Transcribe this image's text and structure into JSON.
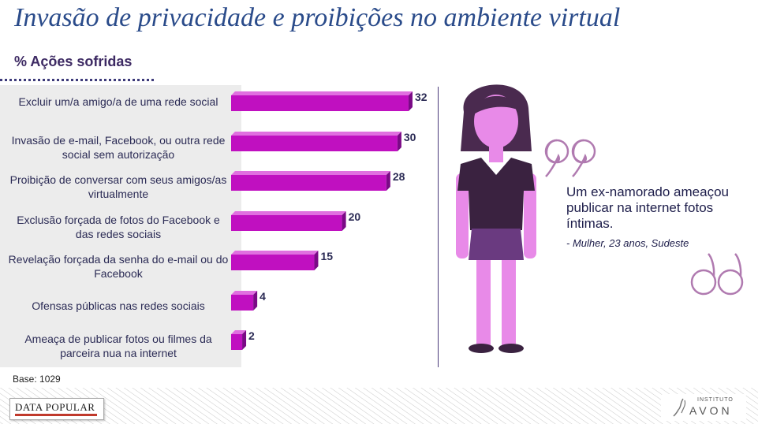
{
  "title": "Invasão de privacidade e proibições no ambiente virtual",
  "subtitle": "% Ações sofridas",
  "base_note": "Base: 1029",
  "quote": {
    "text": "Um ex-namorado ameaçou publicar na internet fotos íntimas.",
    "attribution": "- Mulher, 23 anos, Sudeste"
  },
  "brands": {
    "left": "DATA POPULAR",
    "right_small": "INSTITUTO",
    "right_big": "AVON"
  },
  "colors": {
    "bar": "#c010c0",
    "bar_dark": "#7a0a86",
    "label": "#2b2b55",
    "title": "#2a4b8a"
  },
  "chart_data": {
    "type": "bar",
    "orientation": "horizontal",
    "categories": [
      "Excluir um/a amigo/a de uma rede social",
      "Invasão de e-mail, Facebook, ou outra rede social sem autorização",
      "Proibição de conversar com seus amigos/as virtualmente",
      "Exclusão forçada de fotos do Facebook e das redes sociais",
      "Revelação forçada da senha do e-mail ou do Facebook",
      "Ofensas públicas nas redes sociais",
      "Ameaça de publicar fotos ou filmes da parceira nua na internet"
    ],
    "values": [
      32,
      30,
      28,
      20,
      15,
      4,
      2
    ],
    "data_labels": [
      "32",
      "30",
      "28",
      "20",
      "15",
      "4",
      "2"
    ],
    "title": "% Ações sofridas",
    "xlim": [
      0,
      34
    ],
    "grid": false
  }
}
